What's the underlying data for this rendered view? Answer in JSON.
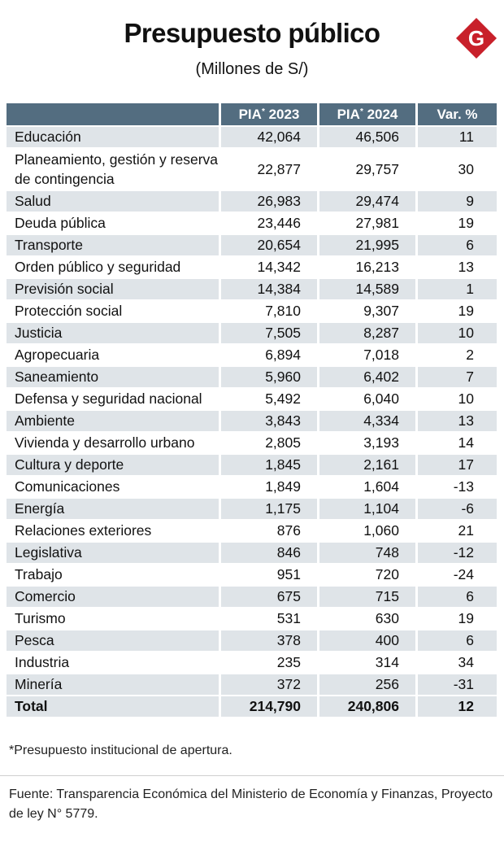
{
  "header": {
    "title": "Presupuesto público",
    "subtitle": "(Millones de S/)",
    "logo_letter": "G",
    "logo_color": "#c8202a"
  },
  "colors": {
    "header_bg": "#536d80",
    "stripe_bg": "#dfe4e8"
  },
  "chart_data": {
    "type": "table",
    "columns": [
      "",
      "PIA* 2023",
      "PIA* 2024",
      "Var. %"
    ],
    "header_labels": [
      {
        "main": "PIA",
        "sup": "*",
        "year": " 2023"
      },
      {
        "main": "PIA",
        "sup": "*",
        "year": " 2024"
      },
      {
        "main": "Var. %",
        "sup": "",
        "year": ""
      }
    ],
    "rows": [
      {
        "name": "Educación",
        "pia2023": "42,064",
        "pia2024": "46,506",
        "var": "11"
      },
      {
        "name": "Planeamiento, gestión y reserva de contingencia",
        "pia2023": "22,877",
        "pia2024": "29,757",
        "var": "30"
      },
      {
        "name": "Salud",
        "pia2023": "26,983",
        "pia2024": "29,474",
        "var": "9"
      },
      {
        "name": "Deuda pública",
        "pia2023": "23,446",
        "pia2024": "27,981",
        "var": "19"
      },
      {
        "name": "Transporte",
        "pia2023": "20,654",
        "pia2024": "21,995",
        "var": "6"
      },
      {
        "name": "Orden público y seguridad",
        "pia2023": "14,342",
        "pia2024": "16,213",
        "var": "13"
      },
      {
        "name": "Previsión social",
        "pia2023": "14,384",
        "pia2024": "14,589",
        "var": "1"
      },
      {
        "name": "Protección social",
        "pia2023": "7,810",
        "pia2024": "9,307",
        "var": "19"
      },
      {
        "name": "Justicia",
        "pia2023": "7,505",
        "pia2024": "8,287",
        "var": "10"
      },
      {
        "name": "Agropecuaria",
        "pia2023": "6,894",
        "pia2024": "7,018",
        "var": "2"
      },
      {
        "name": "Saneamiento",
        "pia2023": "5,960",
        "pia2024": "6,402",
        "var": "7"
      },
      {
        "name": "Defensa y seguridad nacional",
        "pia2023": "5,492",
        "pia2024": "6,040",
        "var": "10"
      },
      {
        "name": "Ambiente",
        "pia2023": "3,843",
        "pia2024": "4,334",
        "var": "13"
      },
      {
        "name": "Vivienda y desarrollo urbano",
        "pia2023": "2,805",
        "pia2024": "3,193",
        "var": "14"
      },
      {
        "name": "Cultura y deporte",
        "pia2023": "1,845",
        "pia2024": "2,161",
        "var": "17"
      },
      {
        "name": "Comunicaciones",
        "pia2023": "1,849",
        "pia2024": "1,604",
        "var": "-13"
      },
      {
        "name": "Energía",
        "pia2023": "1,175",
        "pia2024": "1,104",
        "var": "-6"
      },
      {
        "name": "Relaciones exteriores",
        "pia2023": "876",
        "pia2024": "1,060",
        "var": "21"
      },
      {
        "name": "Legislativa",
        "pia2023": "846",
        "pia2024": "748",
        "var": "-12"
      },
      {
        "name": "Trabajo",
        "pia2023": "951",
        "pia2024": "720",
        "var": "-24"
      },
      {
        "name": "Comercio",
        "pia2023": "675",
        "pia2024": "715",
        "var": "6"
      },
      {
        "name": "Turismo",
        "pia2023": "531",
        "pia2024": "630",
        "var": "19"
      },
      {
        "name": "Pesca",
        "pia2023": "378",
        "pia2024": "400",
        "var": "6"
      },
      {
        "name": "Industria",
        "pia2023": "235",
        "pia2024": "314",
        "var": "34"
      },
      {
        "name": "Minería",
        "pia2023": "372",
        "pia2024": "256",
        "var": "-31"
      }
    ],
    "total": {
      "name": "Total",
      "pia2023": "214,790",
      "pia2024": "240,806",
      "var": "12"
    }
  },
  "footer": {
    "note": "*Presupuesto institucional de apertura.",
    "source": "Fuente: Transparencia Económica del Ministerio de Economía y Finanzas, Proyecto de ley N° 5779."
  }
}
